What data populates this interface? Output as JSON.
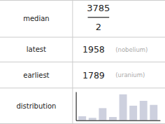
{
  "chart_data": {
    "type": "table",
    "rows": [
      {
        "label": "median",
        "type": "fraction",
        "numerator": "3785",
        "denominator": "2"
      },
      {
        "label": "latest",
        "type": "text",
        "value": "1958",
        "annotation": "(nobelium)"
      },
      {
        "label": "earliest",
        "type": "text",
        "value": "1789",
        "annotation": "(uranium)"
      },
      {
        "label": "distribution",
        "type": "bar",
        "categories": [
          null,
          null,
          null,
          null,
          null,
          null,
          null,
          null
        ],
        "values": [
          0.5,
          0.3,
          1.5,
          0.4,
          3.2,
          1.8,
          2.4,
          1.9
        ],
        "ylim": [
          0,
          3.52
        ],
        "tick_labels": false,
        "color": "#cdd0de"
      }
    ]
  }
}
